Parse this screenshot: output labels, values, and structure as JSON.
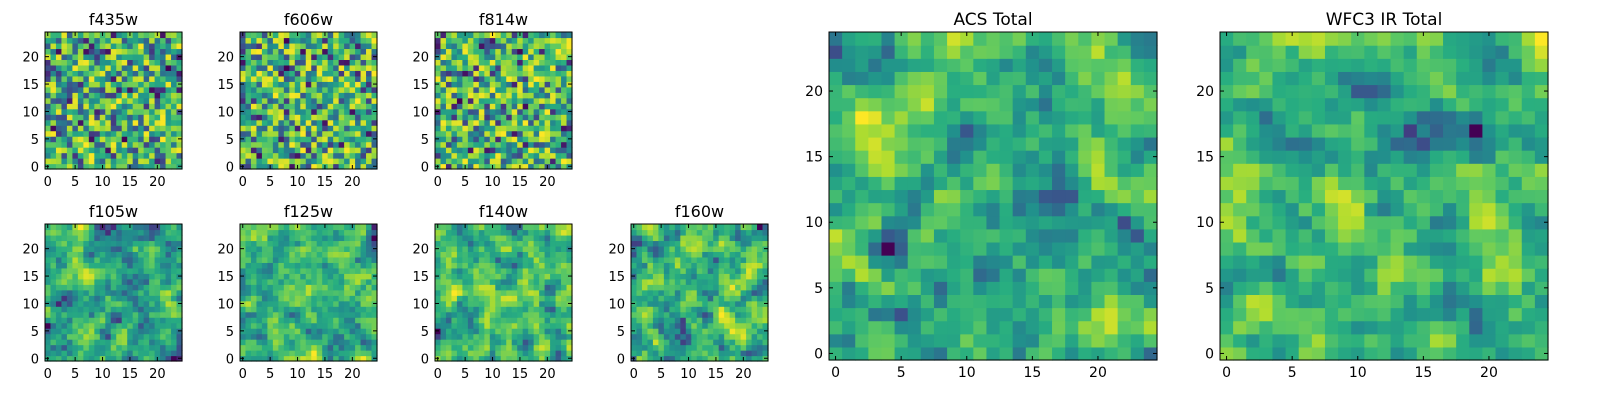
{
  "chart_data": [
    {
      "type": "heatmap",
      "title": "f435w",
      "xticks": [
        "0",
        "5",
        "10",
        "15",
        "20"
      ],
      "yticks": [
        "0",
        "5",
        "10",
        "15",
        "20"
      ],
      "grid_size": 25,
      "colormap": "viridis",
      "seed": 11,
      "smooth": 0
    },
    {
      "type": "heatmap",
      "title": "f606w",
      "xticks": [
        "0",
        "5",
        "10",
        "15",
        "20"
      ],
      "yticks": [
        "0",
        "5",
        "10",
        "15",
        "20"
      ],
      "grid_size": 25,
      "colormap": "viridis",
      "seed": 23,
      "smooth": 0
    },
    {
      "type": "heatmap",
      "title": "f814w",
      "xticks": [
        "0",
        "5",
        "10",
        "15",
        "20"
      ],
      "yticks": [
        "0",
        "5",
        "10",
        "15",
        "20"
      ],
      "grid_size": 25,
      "colormap": "viridis",
      "seed": 37,
      "smooth": 0
    },
    {
      "type": "heatmap",
      "title": "f105w",
      "xticks": [
        "0",
        "5",
        "10",
        "15",
        "20"
      ],
      "yticks": [
        "0",
        "5",
        "10",
        "15",
        "20"
      ],
      "grid_size": 25,
      "colormap": "viridis",
      "seed": 41,
      "smooth": 1
    },
    {
      "type": "heatmap",
      "title": "f125w",
      "xticks": [
        "0",
        "5",
        "10",
        "15",
        "20"
      ],
      "yticks": [
        "0",
        "5",
        "10",
        "15",
        "20"
      ],
      "grid_size": 25,
      "colormap": "viridis",
      "seed": 53,
      "smooth": 1
    },
    {
      "type": "heatmap",
      "title": "f140w",
      "xticks": [
        "0",
        "5",
        "10",
        "15",
        "20"
      ],
      "yticks": [
        "0",
        "5",
        "10",
        "15",
        "20"
      ],
      "grid_size": 25,
      "colormap": "viridis",
      "seed": 67,
      "smooth": 1
    },
    {
      "type": "heatmap",
      "title": "f160w",
      "xticks": [
        "0",
        "5",
        "10",
        "15",
        "20"
      ],
      "yticks": [
        "0",
        "5",
        "10",
        "15",
        "20"
      ],
      "grid_size": 25,
      "colormap": "viridis",
      "seed": 79,
      "smooth": 1
    },
    {
      "type": "heatmap",
      "title": "ACS Total",
      "xticks": [
        "0",
        "5",
        "10",
        "15",
        "20"
      ],
      "yticks": [
        "0",
        "5",
        "10",
        "15",
        "20"
      ],
      "grid_size": 25,
      "colormap": "viridis",
      "seed": 83,
      "smooth": 1
    },
    {
      "type": "heatmap",
      "title": "WFC3 IR Total",
      "xticks": [
        "0",
        "5",
        "10",
        "15",
        "20"
      ],
      "yticks": [
        "0",
        "5",
        "10",
        "15",
        "20"
      ],
      "grid_size": 25,
      "colormap": "viridis",
      "seed": 97,
      "smooth": 2
    }
  ]
}
